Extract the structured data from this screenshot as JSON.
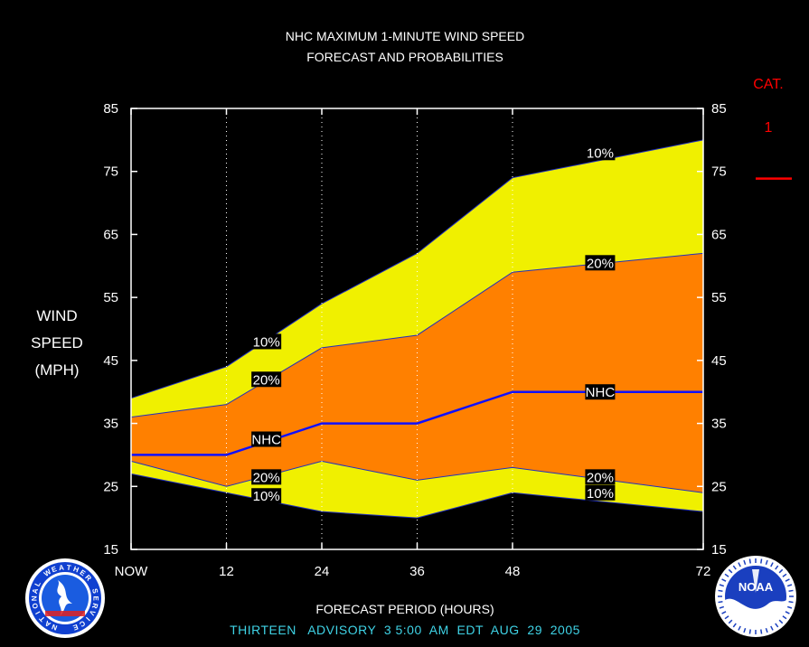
{
  "chart_data": {
    "type": "area",
    "title": "NHC MAXIMUM 1-MINUTE WIND SPEED",
    "subtitle": "FORECAST AND PROBABILITIES",
    "xlabel": "FORECAST PERIOD (HOURS)",
    "ylabel_lines": [
      "WIND",
      "SPEED",
      "(MPH)"
    ],
    "xlim": [
      0,
      72
    ],
    "ylim": [
      15,
      85
    ],
    "x_ticks": [
      0,
      12,
      24,
      36,
      48,
      72
    ],
    "x_tick_labels": [
      "NOW",
      "12",
      "24",
      "36",
      "48",
      "72"
    ],
    "y_ticks": [
      15,
      25,
      35,
      45,
      55,
      65,
      75,
      85
    ],
    "x": [
      0,
      12,
      24,
      36,
      48,
      72
    ],
    "series": [
      {
        "name": "10%",
        "band": "upper",
        "values": [
          39,
          44,
          54,
          62,
          74,
          80
        ]
      },
      {
        "name": "20%",
        "band": "upper",
        "values": [
          36,
          38,
          47,
          49,
          59,
          62
        ]
      },
      {
        "name": "NHC",
        "values": [
          30,
          30,
          35,
          35,
          40,
          40
        ]
      },
      {
        "name": "20%",
        "band": "lower",
        "values": [
          29,
          25,
          29,
          26,
          28,
          24
        ]
      },
      {
        "name": "10%",
        "band": "lower",
        "values": [
          27,
          24,
          21,
          20,
          24,
          21
        ]
      }
    ],
    "colors": {
      "outer_band": "#f0f000",
      "inner_band": "#ff8000",
      "nhc_line": "#1010ff",
      "cat_line": "#ff0000"
    },
    "series_labels": [
      {
        "text": "10%",
        "x": 16,
        "y": 48
      },
      {
        "text": "20%",
        "x": 16,
        "y": 42
      },
      {
        "text": "NHC",
        "x": 16,
        "y": 32.5
      },
      {
        "text": "20%",
        "x": 16,
        "y": 26.5
      },
      {
        "text": "10%",
        "x": 16,
        "y": 23.5
      },
      {
        "text": "10%",
        "x": 58,
        "y": 78
      },
      {
        "text": "20%",
        "x": 58,
        "y": 60.5
      },
      {
        "text": "NHC",
        "x": 58,
        "y": 40
      },
      {
        "text": "20%",
        "x": 58,
        "y": 26.5
      },
      {
        "text": "10%",
        "x": 58,
        "y": 24
      }
    ],
    "categories_legend": {
      "title": "CAT.",
      "items": [
        {
          "label": "1",
          "threshold": 74
        }
      ]
    },
    "grid": {
      "vertical_dotted": true
    }
  },
  "footer": {
    "advisory": "THIRTEEN   ADVISORY  3 5:00  AM  EDT  AUG  29  2005"
  },
  "logos": {
    "left": {
      "icon": "nws-logo-icon",
      "text": "NATIONAL WEATHER SERVICE"
    },
    "right": {
      "icon": "noaa-logo-icon",
      "text": "NOAA"
    }
  }
}
